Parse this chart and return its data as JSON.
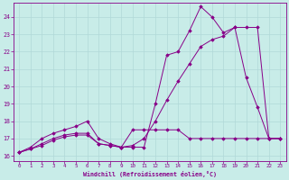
{
  "xlabel": "Windchill (Refroidissement éolien,°C)",
  "bg_color": "#c8ece8",
  "line_color": "#880088",
  "grid_color": "#b0d8d8",
  "text_color": "#880088",
  "xlim": [
    -0.5,
    23.5
  ],
  "ylim": [
    15.7,
    24.8
  ],
  "xticks": [
    0,
    1,
    2,
    3,
    4,
    5,
    6,
    7,
    8,
    9,
    10,
    11,
    12,
    13,
    14,
    15,
    16,
    17,
    18,
    19,
    20,
    21,
    22,
    23
  ],
  "yticks": [
    16,
    17,
    18,
    19,
    20,
    21,
    22,
    23,
    24
  ],
  "line1_x": [
    0,
    1,
    2,
    3,
    4,
    5,
    6,
    7,
    8,
    9,
    10,
    11,
    12,
    13,
    14,
    15,
    16,
    17,
    18,
    19,
    20,
    21,
    22,
    23
  ],
  "line1_y": [
    16.2,
    16.4,
    16.6,
    16.9,
    17.1,
    17.2,
    17.2,
    16.7,
    16.6,
    16.5,
    17.5,
    17.5,
    17.5,
    17.5,
    17.5,
    17.0,
    17.0,
    17.0,
    17.0,
    17.0,
    17.0,
    17.0,
    17.0,
    17.0
  ],
  "line2_x": [
    0,
    1,
    2,
    3,
    4,
    5,
    6,
    7,
    8,
    9,
    10,
    11,
    12,
    13,
    14,
    15,
    16,
    17,
    18,
    19,
    20,
    21,
    22,
    23
  ],
  "line2_y": [
    16.2,
    16.4,
    16.7,
    17.0,
    17.2,
    17.3,
    17.3,
    16.7,
    16.6,
    16.5,
    16.5,
    16.5,
    19.0,
    21.8,
    22.0,
    23.2,
    24.6,
    24.0,
    23.1,
    23.4,
    20.5,
    18.8,
    17.0,
    17.0
  ],
  "line3_x": [
    0,
    1,
    2,
    3,
    4,
    5,
    6,
    7,
    8,
    9,
    10,
    11,
    12,
    13,
    14,
    15,
    16,
    17,
    18,
    19,
    20,
    21,
    22,
    23
  ],
  "line3_y": [
    16.2,
    16.5,
    17.0,
    17.3,
    17.5,
    17.7,
    18.0,
    17.0,
    16.7,
    16.5,
    16.6,
    17.0,
    18.0,
    19.2,
    20.3,
    21.3,
    22.3,
    22.7,
    22.9,
    23.4,
    23.4,
    23.4,
    17.0,
    17.0
  ]
}
